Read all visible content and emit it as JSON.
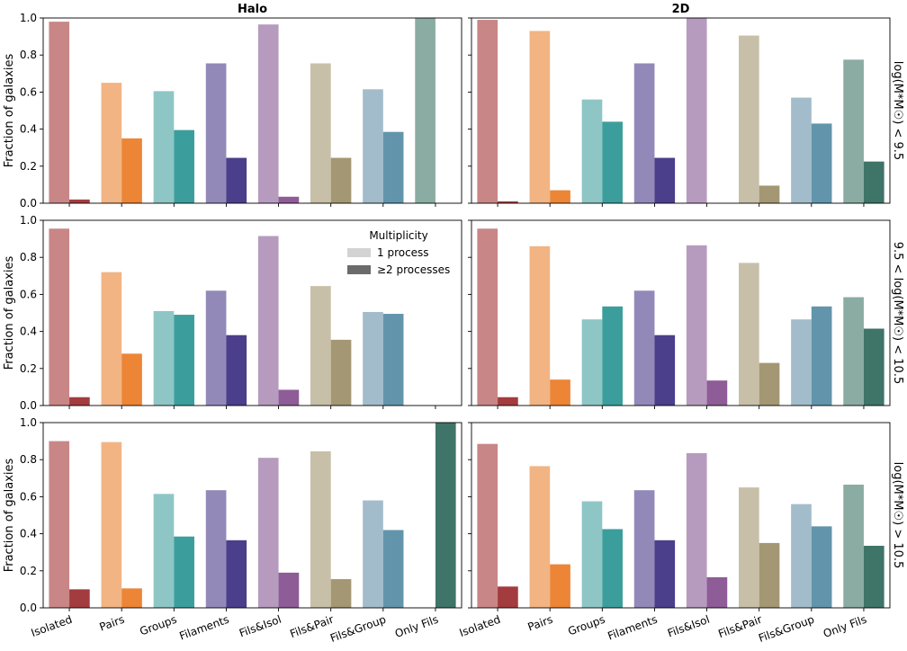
{
  "figure": {
    "column_titles": [
      "Halo",
      "2D"
    ],
    "row_labels": [
      "log(M*M☉) < 9.5",
      "9.5 < log(M*M☉) < 10.5",
      "log(M*M☉) > 10.5"
    ],
    "ylabel": "Fraction of galaxies",
    "legend": {
      "title": "Multiplicity",
      "entries": [
        "1 process",
        "≥2 processes"
      ],
      "placement": "upper-right of middle-left panel"
    }
  },
  "chart_data": {
    "type": "bar",
    "layout": "3 rows x 2 columns, shared x and y axes",
    "categories": [
      "Isolated",
      "Pairs",
      "Groups",
      "Filaments",
      "Fils&Isol",
      "Fils&Pair",
      "Fils&Group",
      "Only Fils"
    ],
    "ylim": [
      0,
      1
    ],
    "yticks": [
      "0.0",
      "0.2",
      "0.4",
      "0.6",
      "0.8",
      "1.0"
    ],
    "grid": false,
    "series_names": [
      "1 process",
      "≥2 processes"
    ],
    "colors_light": [
      "#c98686",
      "#f2b483",
      "#8ec6c5",
      "#9289b9",
      "#b69bbe",
      "#c7bfa8",
      "#a3bccb",
      "#8aaca3"
    ],
    "colors_dark": [
      "#a33c3e",
      "#ec8536",
      "#3b9e9d",
      "#4b3e8a",
      "#8e5c96",
      "#a39873",
      "#6295ac",
      "#3f7468"
    ],
    "panels": [
      {
        "row": 0,
        "col": 0,
        "one": [
          0.98,
          0.65,
          0.605,
          0.755,
          0.965,
          0.755,
          0.615,
          1.0
        ],
        "two": [
          0.02,
          0.35,
          0.395,
          0.245,
          0.035,
          0.245,
          0.385,
          0.0
        ]
      },
      {
        "row": 0,
        "col": 1,
        "one": [
          0.99,
          0.93,
          0.56,
          0.755,
          1.0,
          0.905,
          0.57,
          0.775
        ],
        "two": [
          0.01,
          0.07,
          0.44,
          0.245,
          0.0,
          0.095,
          0.43,
          0.225
        ]
      },
      {
        "row": 1,
        "col": 0,
        "one": [
          0.955,
          0.72,
          0.51,
          0.62,
          0.915,
          0.645,
          0.505,
          0.0
        ],
        "two": [
          0.045,
          0.28,
          0.49,
          0.38,
          0.085,
          0.355,
          0.495,
          0.0
        ]
      },
      {
        "row": 1,
        "col": 1,
        "one": [
          0.955,
          0.86,
          0.465,
          0.62,
          0.865,
          0.77,
          0.465,
          0.585
        ],
        "two": [
          0.045,
          0.14,
          0.535,
          0.38,
          0.135,
          0.23,
          0.535,
          0.415
        ]
      },
      {
        "row": 2,
        "col": 0,
        "one": [
          0.9,
          0.895,
          0.615,
          0.635,
          0.81,
          0.845,
          0.58,
          0.0
        ],
        "two": [
          0.1,
          0.105,
          0.385,
          0.365,
          0.19,
          0.155,
          0.42,
          1.0
        ]
      },
      {
        "row": 2,
        "col": 1,
        "one": [
          0.885,
          0.765,
          0.575,
          0.635,
          0.835,
          0.65,
          0.56,
          0.665
        ],
        "two": [
          0.115,
          0.235,
          0.425,
          0.365,
          0.165,
          0.35,
          0.44,
          0.335
        ]
      }
    ]
  }
}
